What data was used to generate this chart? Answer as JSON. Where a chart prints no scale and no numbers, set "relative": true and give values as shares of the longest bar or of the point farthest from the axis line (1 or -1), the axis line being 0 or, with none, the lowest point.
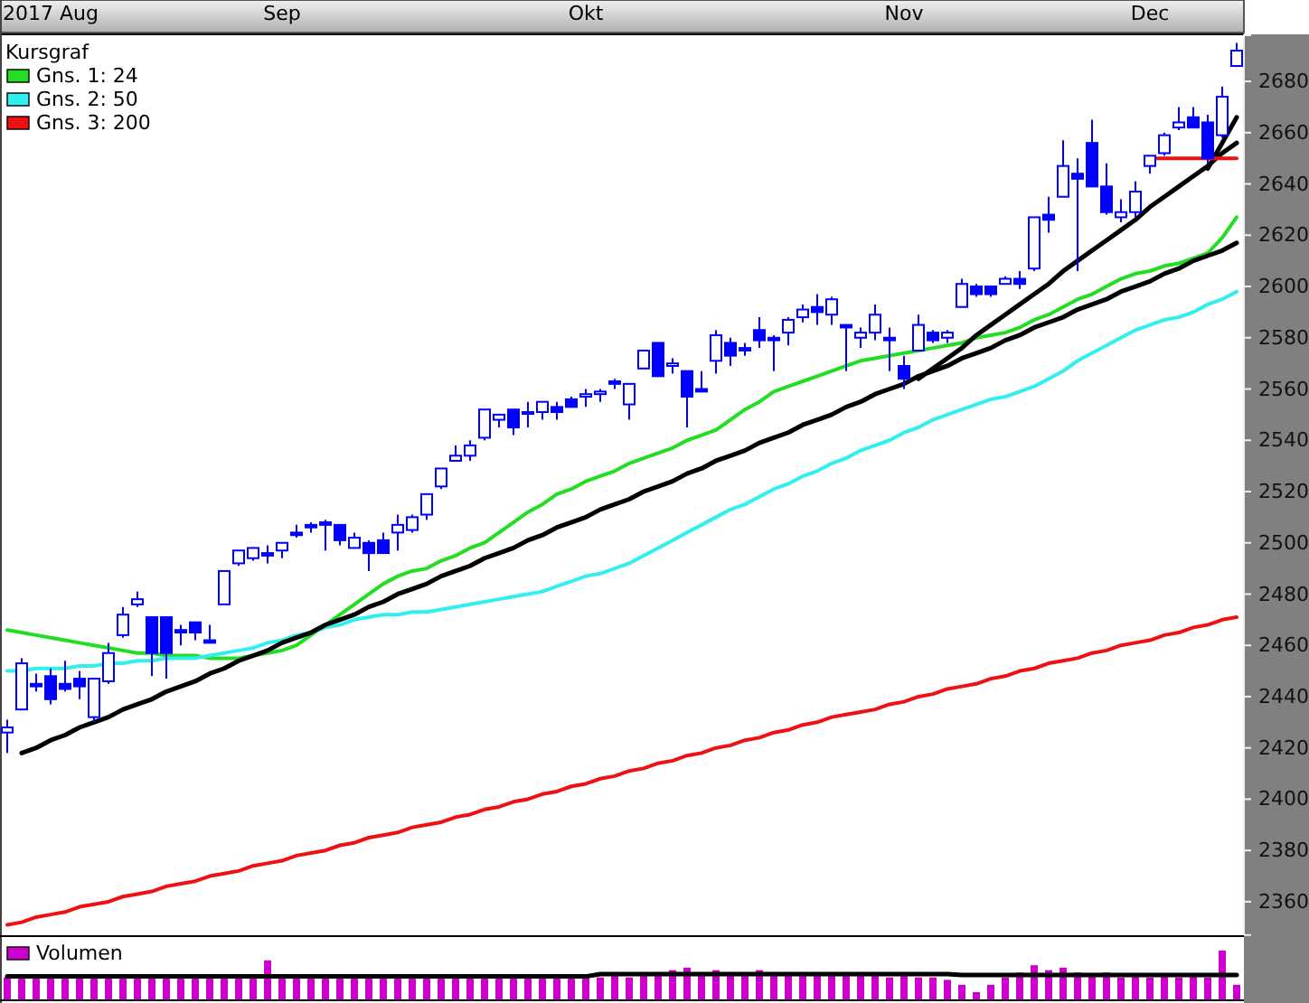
{
  "chart_data": [
    {
      "type": "candlestick",
      "legend": "top left",
      "legend_title": "Kursgraf",
      "color": "#0000ff",
      "categories": [
        null,
        null,
        null,
        "2017 Aug",
        null,
        null,
        null,
        null,
        null,
        null,
        null,
        null,
        null,
        null,
        null,
        null,
        null,
        null,
        null,
        "Sep",
        null,
        null,
        null,
        null,
        null,
        null,
        null,
        null,
        null,
        null,
        null,
        null,
        null,
        null,
        null,
        null,
        null,
        null,
        null,
        null,
        "Okt",
        null,
        null,
        null,
        null,
        null,
        null,
        null,
        null,
        null,
        null,
        null,
        null,
        null,
        null,
        null,
        null,
        null,
        null,
        null,
        null,
        null,
        "Nov",
        null,
        null,
        null,
        null,
        null,
        null,
        null,
        null,
        null,
        null,
        null,
        null,
        null,
        null,
        null,
        null,
        "Dec",
        null,
        null,
        null,
        null,
        null,
        null
      ],
      "ylim": [
        2347,
        2698
      ],
      "yticks": [
        2360,
        2380,
        2400,
        2420,
        2440,
        2460,
        2480,
        2500,
        2520,
        2540,
        2560,
        2580,
        2600,
        2620,
        2640,
        2660,
        2680
      ],
      "ohlc": [
        [
          2426,
          2431,
          2418,
          2428
        ],
        [
          2435,
          2455,
          2435,
          2453
        ],
        [
          2445,
          2449,
          2442,
          2444
        ],
        [
          2448,
          2451,
          2437,
          2439
        ],
        [
          2445,
          2454,
          2442,
          2443
        ],
        [
          2447,
          2450,
          2439,
          2444
        ],
        [
          2432,
          2447,
          2430,
          2447
        ],
        [
          2446,
          2461,
          2445,
          2457
        ],
        [
          2464,
          2475,
          2463,
          2472
        ],
        [
          2476,
          2481,
          2475,
          2478
        ],
        [
          2471,
          2471,
          2448,
          2457
        ],
        [
          2471,
          2471,
          2447,
          2457
        ],
        [
          2466,
          2468,
          2460,
          2465
        ],
        [
          2469,
          2469,
          2462,
          2465
        ],
        [
          2462,
          2468,
          2461,
          2461
        ],
        [
          2476,
          2489,
          2476,
          2489
        ],
        [
          2492,
          2497,
          2491,
          2497
        ],
        [
          2494,
          2498,
          2493,
          2498
        ],
        [
          2496,
          2499,
          2492,
          2495
        ],
        [
          2497,
          2500,
          2494,
          2500
        ],
        [
          2504,
          2507,
          2502,
          2503
        ],
        [
          2507,
          2508,
          2504,
          2506
        ],
        [
          2508,
          2509,
          2497,
          2507
        ],
        [
          2507,
          2507,
          2499,
          2501
        ],
        [
          2498,
          2504,
          2498,
          2502
        ],
        [
          2500,
          2501,
          2489,
          2496
        ],
        [
          2501,
          2504,
          2496,
          2496
        ],
        [
          2504,
          2511,
          2497,
          2507
        ],
        [
          2505,
          2511,
          2504,
          2510
        ],
        [
          2511,
          2519,
          2509,
          2519
        ],
        [
          2522,
          2529,
          2521,
          2529
        ],
        [
          2532,
          2538,
          2532,
          2534
        ],
        [
          2534,
          2540,
          2532,
          2538
        ],
        [
          2541,
          2552,
          2540,
          2552
        ],
        [
          2548,
          2550,
          2545,
          2550
        ],
        [
          2552,
          2552,
          2542,
          2545
        ],
        [
          2551,
          2555,
          2545,
          2551
        ],
        [
          2551,
          2555,
          2548,
          2555
        ],
        [
          2553,
          2555,
          2548,
          2551
        ],
        [
          2556,
          2557,
          2553,
          2553
        ],
        [
          2557,
          2560,
          2553,
          2558
        ],
        [
          2558,
          2560,
          2555,
          2559
        ],
        [
          2563,
          2564,
          2560,
          2562
        ],
        [
          2554,
          2562,
          2548,
          2562
        ],
        [
          2568,
          2575,
          2568,
          2575
        ],
        [
          2578,
          2578,
          2565,
          2565
        ],
        [
          2569,
          2572,
          2566,
          2570
        ],
        [
          2567,
          2567,
          2545,
          2557
        ],
        [
          2560,
          2567,
          2559,
          2559
        ],
        [
          2571,
          2583,
          2566,
          2581
        ],
        [
          2578,
          2580,
          2569,
          2573
        ],
        [
          2576,
          2578,
          2573,
          2575
        ],
        [
          2583,
          2588,
          2576,
          2579
        ],
        [
          2580,
          2581,
          2567,
          2579
        ],
        [
          2582,
          2588,
          2577,
          2587
        ],
        [
          2588,
          2593,
          2586,
          2591
        ],
        [
          2592,
          2597,
          2585,
          2590
        ],
        [
          2589,
          2596,
          2585,
          2595
        ],
        [
          2585,
          2585,
          2567,
          2584
        ],
        [
          2580,
          2584,
          2576,
          2582
        ],
        [
          2582,
          2593,
          2579,
          2589
        ],
        [
          2580,
          2584,
          2567,
          2579
        ],
        [
          2569,
          2573,
          2560,
          2564
        ],
        [
          2575,
          2589,
          2575,
          2585
        ],
        [
          2582,
          2583,
          2578,
          2579
        ],
        [
          2580,
          2583,
          2578,
          2582
        ],
        [
          2592,
          2603,
          2592,
          2601
        ],
        [
          2600,
          2601,
          2596,
          2597
        ],
        [
          2600,
          2600,
          2596,
          2597
        ],
        [
          2601,
          2604,
          2601,
          2603
        ],
        [
          2603,
          2606,
          2599,
          2601
        ],
        [
          2607,
          2627,
          2606,
          2627
        ],
        [
          2628,
          2635,
          2621,
          2626
        ],
        [
          2635,
          2657,
          2635,
          2647
        ],
        [
          2644,
          2650,
          2606,
          2642
        ],
        [
          2656,
          2665,
          2639,
          2639
        ],
        [
          2639,
          2648,
          2628,
          2629
        ],
        [
          2627,
          2634,
          2625,
          2629
        ],
        [
          2629,
          2641,
          2627,
          2637
        ],
        [
          2647,
          2651,
          2644,
          2651
        ],
        [
          2652,
          2660,
          2651,
          2659
        ],
        [
          2662,
          2670,
          2661,
          2664
        ],
        [
          2666,
          2670,
          2662,
          2662
        ],
        [
          2664,
          2667,
          2648,
          2650
        ],
        [
          2659,
          2678,
          2658,
          2674
        ],
        [
          2686,
          2695,
          2686,
          2692
        ]
      ],
      "series": [
        {
          "type": "line",
          "name": "Gns. 1: 24",
          "color": "#22dd22",
          "values": [
            2466,
            2465,
            2464,
            2463,
            2462,
            2461,
            2460,
            2459,
            2458,
            2457,
            2457,
            2456,
            2456,
            2456,
            2455,
            2455,
            2455,
            2456,
            2457,
            2458,
            2460,
            2464,
            2468,
            2472,
            2476,
            2480,
            2484,
            2487,
            2489,
            2490,
            2493,
            2495,
            2498,
            2500,
            2504,
            2508,
            2512,
            2515,
            2519,
            2521,
            2524,
            2526,
            2528,
            2531,
            2533,
            2535,
            2537,
            2540,
            2542,
            2544,
            2548,
            2552,
            2555,
            2559,
            2561,
            2563,
            2565,
            2567,
            2569,
            2571,
            2572,
            2573,
            2574,
            2575,
            2576,
            2577,
            2578,
            2580,
            2581,
            2582,
            2584,
            2587,
            2589,
            2592,
            2595,
            2597,
            2600,
            2603,
            2605,
            2606,
            2608,
            2609,
            2611,
            2613,
            2619,
            2627
          ]
        },
        {
          "type": "line",
          "name": "Gns. 2: 50",
          "color": "#33eeee",
          "values": [
            2450,
            2450,
            2451,
            2451,
            2451,
            2452,
            2452,
            2453,
            2453,
            2454,
            2454,
            2455,
            2455,
            2455,
            2456,
            2457,
            2458,
            2459,
            2461,
            2462,
            2464,
            2465,
            2467,
            2468,
            2470,
            2471,
            2472,
            2472,
            2473,
            2473,
            2474,
            2475,
            2476,
            2477,
            2478,
            2479,
            2480,
            2481,
            2483,
            2485,
            2487,
            2488,
            2490,
            2492,
            2495,
            2498,
            2501,
            2504,
            2507,
            2510,
            2513,
            2515,
            2518,
            2521,
            2523,
            2526,
            2528,
            2531,
            2533,
            2536,
            2538,
            2540,
            2543,
            2545,
            2548,
            2550,
            2552,
            2554,
            2556,
            2557,
            2559,
            2561,
            2564,
            2567,
            2571,
            2574,
            2577,
            2580,
            2583,
            2585,
            2587,
            2588,
            2590,
            2593,
            2595,
            2598
          ]
        },
        {
          "type": "line",
          "name": "Gns. 3: 200",
          "color": "#ee1111",
          "values": [
            2351,
            2352,
            2354,
            2355,
            2356,
            2358,
            2359,
            2360,
            2362,
            2363,
            2364,
            2366,
            2367,
            2368,
            2370,
            2371,
            2372,
            2374,
            2375,
            2376,
            2378,
            2379,
            2380,
            2382,
            2383,
            2385,
            2386,
            2387,
            2389,
            2390,
            2391,
            2393,
            2394,
            2396,
            2397,
            2399,
            2400,
            2402,
            2403,
            2405,
            2406,
            2408,
            2409,
            2411,
            2412,
            2414,
            2415,
            2417,
            2418,
            2420,
            2421,
            2423,
            2424,
            2426,
            2427,
            2429,
            2430,
            2432,
            2433,
            2434,
            2435,
            2437,
            2438,
            2440,
            2441,
            2443,
            2444,
            2445,
            2447,
            2448,
            2450,
            2451,
            2453,
            2454,
            2455,
            2457,
            2458,
            2460,
            2461,
            2462,
            2464,
            2465,
            2467,
            2468,
            2470,
            2471
          ]
        },
        {
          "type": "line",
          "color": "#000000",
          "values": [
            null,
            2418,
            2420,
            2423,
            2425,
            2428,
            2430,
            2432,
            2435,
            2437,
            2439,
            2442,
            2444,
            2446,
            2449,
            2451,
            2454,
            2456,
            2458,
            2461,
            2463,
            2465,
            2468,
            2470,
            2472,
            2475,
            2477,
            2480,
            2482,
            2484,
            2487,
            2489,
            2491,
            2494,
            2496,
            2498,
            2501,
            2503,
            2506,
            2508,
            2510,
            2513,
            2515,
            2517,
            2520,
            2522,
            2524,
            2527,
            2529,
            2532,
            2534,
            2536,
            2539,
            2541,
            2543,
            2546,
            2548,
            2550,
            2553,
            2555,
            2558,
            2560,
            2562,
            2565,
            2567,
            2569,
            2572,
            2574,
            2576,
            2579,
            2581,
            2584,
            2586,
            2588,
            2591,
            2593,
            2595,
            2598,
            2600,
            2602,
            2605,
            2607,
            2610,
            2612,
            2614,
            2617
          ]
        },
        {
          "type": "line",
          "color": "#000000",
          "values": [
            null,
            null,
            null,
            null,
            null,
            null,
            null,
            null,
            null,
            null,
            null,
            null,
            null,
            null,
            null,
            null,
            null,
            null,
            null,
            null,
            null,
            null,
            null,
            null,
            null,
            null,
            null,
            null,
            null,
            null,
            null,
            null,
            null,
            null,
            null,
            null,
            null,
            null,
            null,
            null,
            null,
            null,
            null,
            null,
            null,
            null,
            null,
            null,
            null,
            null,
            null,
            null,
            null,
            null,
            null,
            null,
            null,
            null,
            null,
            null,
            null,
            null,
            null,
            2564,
            2568,
            2572,
            2576,
            2581,
            2585,
            2589,
            2593,
            2597,
            2601,
            2606,
            2610,
            2614,
            2618,
            2622,
            2626,
            2631,
            2635,
            2639,
            2643,
            2647,
            2652,
            2656
          ]
        },
        {
          "type": "line",
          "color": "#000000",
          "values": [
            null,
            null,
            null,
            null,
            null,
            null,
            null,
            null,
            null,
            null,
            null,
            null,
            null,
            null,
            null,
            null,
            null,
            null,
            null,
            null,
            null,
            null,
            null,
            null,
            null,
            null,
            null,
            null,
            null,
            null,
            null,
            null,
            null,
            null,
            null,
            null,
            null,
            null,
            null,
            null,
            null,
            null,
            null,
            null,
            null,
            null,
            null,
            null,
            null,
            null,
            null,
            null,
            null,
            null,
            null,
            null,
            null,
            null,
            null,
            null,
            null,
            null,
            null,
            null,
            null,
            null,
            null,
            null,
            null,
            null,
            null,
            null,
            null,
            null,
            null,
            null,
            null,
            null,
            null,
            null,
            null,
            null,
            null,
            2646,
            2656,
            2666
          ]
        },
        {
          "type": "line",
          "color": "#ee1111",
          "values": [
            null,
            null,
            null,
            null,
            null,
            null,
            null,
            null,
            null,
            null,
            null,
            null,
            null,
            null,
            null,
            null,
            null,
            null,
            null,
            null,
            null,
            null,
            null,
            null,
            null,
            null,
            null,
            null,
            null,
            null,
            null,
            null,
            null,
            null,
            null,
            null,
            null,
            null,
            null,
            null,
            null,
            null,
            null,
            null,
            null,
            null,
            null,
            null,
            null,
            null,
            null,
            null,
            null,
            null,
            null,
            null,
            null,
            null,
            null,
            null,
            null,
            null,
            null,
            null,
            null,
            null,
            null,
            null,
            null,
            null,
            null,
            null,
            null,
            null,
            null,
            null,
            null,
            null,
            null,
            2650,
            2650,
            2650,
            2650,
            2650,
            2650,
            2650
          ]
        }
      ]
    },
    {
      "type": "bar",
      "relative": true,
      "legend": "top left",
      "categories": [
        null,
        null,
        null,
        null,
        null,
        null,
        null,
        null,
        null,
        null,
        null,
        null,
        null,
        null,
        null,
        null,
        null,
        null,
        null,
        null,
        null,
        null,
        null,
        null,
        null,
        null,
        null,
        null,
        null,
        null,
        null,
        null,
        null,
        null,
        null,
        null,
        null,
        null,
        null,
        null,
        null,
        null,
        null,
        null,
        null,
        null,
        null,
        null,
        null,
        null,
        null,
        null,
        null,
        null,
        null,
        null,
        null,
        null,
        null,
        null,
        null,
        null,
        null,
        null,
        null,
        null,
        null,
        null,
        null,
        null,
        null,
        null,
        null,
        null,
        null,
        null,
        null,
        null,
        null,
        null,
        null,
        null,
        null,
        null,
        null,
        null
      ],
      "series": [
        {
          "name": "Volumen",
          "color": "#cc00cc",
          "values": [
            0.45,
            0.43,
            0.45,
            0.48,
            0.45,
            0.43,
            0.45,
            0.43,
            0.45,
            0.43,
            0.45,
            0.43,
            0.45,
            0.43,
            0.45,
            0.43,
            0.45,
            0.5,
            0.8,
            0.45,
            0.43,
            0.45,
            0.43,
            0.45,
            0.43,
            0.45,
            0.43,
            0.45,
            0.43,
            0.45,
            0.43,
            0.43,
            0.45,
            0.43,
            0.43,
            0.45,
            0.43,
            0.45,
            0.43,
            0.45,
            0.5,
            0.45,
            0.5,
            0.45,
            0.5,
            0.55,
            0.6,
            0.65,
            0.55,
            0.6,
            0.55,
            0.55,
            0.6,
            0.55,
            0.5,
            0.55,
            0.5,
            0.5,
            0.55,
            0.5,
            0.5,
            0.45,
            0.5,
            0.45,
            0.45,
            0.4,
            0.3,
            0.15,
            0.3,
            0.45,
            0.55,
            0.7,
            0.6,
            0.65,
            0.55,
            0.5,
            0.55,
            0.45,
            0.5,
            0.45,
            0.5,
            0.45,
            0.5,
            0.45,
            1,
            0.3
          ]
        },
        {
          "type": "line",
          "color": "#000000",
          "values": [
            0.47,
            0.47,
            0.47,
            0.47,
            0.47,
            0.47,
            0.47,
            0.47,
            0.47,
            0.47,
            0.47,
            0.47,
            0.47,
            0.47,
            0.47,
            0.47,
            0.47,
            0.47,
            0.47,
            0.47,
            0.47,
            0.47,
            0.47,
            0.47,
            0.47,
            0.47,
            0.47,
            0.47,
            0.47,
            0.47,
            0.47,
            0.47,
            0.47,
            0.47,
            0.47,
            0.47,
            0.47,
            0.47,
            0.47,
            0.47,
            0.47,
            0.52,
            0.52,
            0.52,
            0.52,
            0.52,
            0.52,
            0.52,
            0.52,
            0.52,
            0.52,
            0.52,
            0.52,
            0.52,
            0.52,
            0.52,
            0.52,
            0.52,
            0.52,
            0.52,
            0.52,
            0.52,
            0.52,
            0.52,
            0.52,
            0.52,
            0.5,
            0.5,
            0.5,
            0.5,
            0.5,
            0.5,
            0.5,
            0.5,
            0.5,
            0.5,
            0.5,
            0.5,
            0.5,
            0.5,
            0.5,
            0.5,
            0.5,
            0.5,
            0.5,
            0.5
          ]
        }
      ]
    }
  ]
}
